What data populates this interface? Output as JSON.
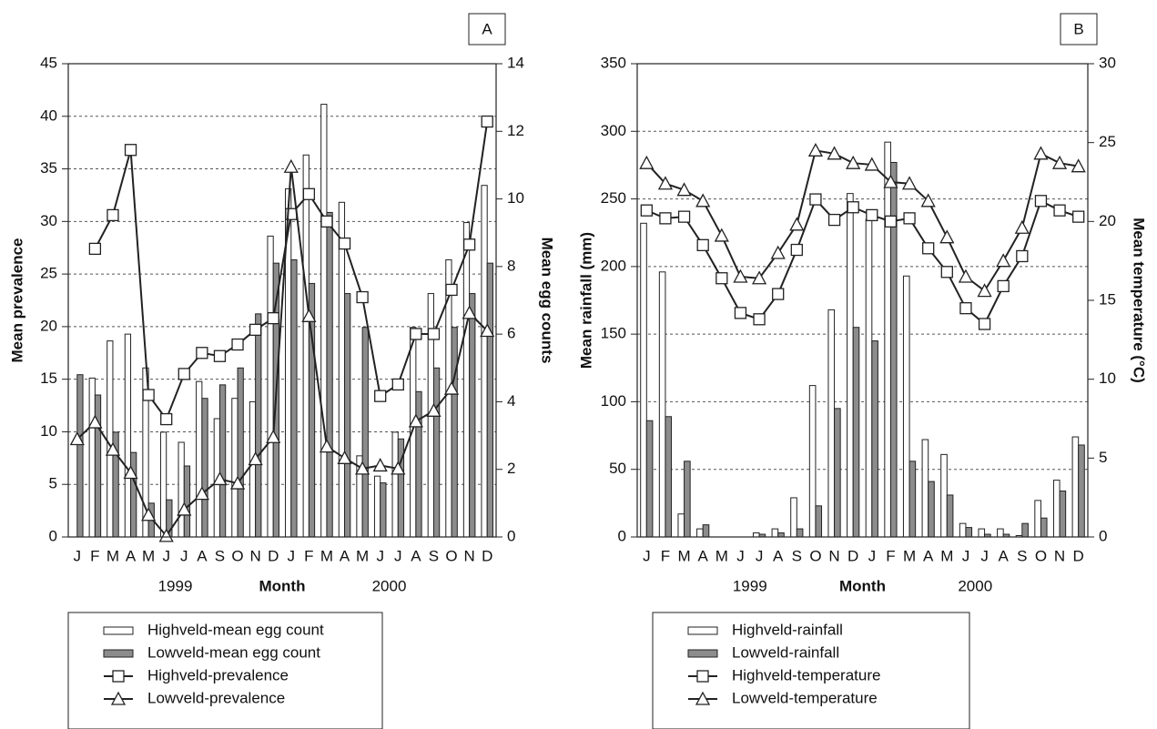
{
  "chart_data": [
    {
      "type": "combo",
      "panel_label": "A",
      "xlabel": "Month",
      "year_labels": [
        "1999",
        "2000"
      ],
      "ylabel": "Mean prevalence",
      "y2label": "Mean egg counts",
      "categories": [
        "J",
        "F",
        "M",
        "A",
        "M",
        "J",
        "J",
        "A",
        "S",
        "O",
        "N",
        "D",
        "J",
        "F",
        "M",
        "A",
        "M",
        "J",
        "J",
        "A",
        "S",
        "O",
        "N",
        "D"
      ],
      "ylim": [
        0,
        45
      ],
      "yticks": [
        0,
        5,
        10,
        15,
        20,
        25,
        30,
        35,
        40,
        45
      ],
      "y2lim": [
        0,
        14
      ],
      "y2ticks": [
        0,
        2,
        4,
        6,
        8,
        10,
        12,
        14
      ],
      "grid": true,
      "series": [
        {
          "name": "Highveld-mean egg count",
          "type": "bar",
          "axis": "y2",
          "color": "#ffffff",
          "values": [
            null,
            4.7,
            5.8,
            6.0,
            5.0,
            3.1,
            2.8,
            4.6,
            3.5,
            4.1,
            4.0,
            8.9,
            10.3,
            11.3,
            12.8,
            9.9,
            2.4,
            1.8,
            3.1,
            6.2,
            7.2,
            8.2,
            9.3,
            10.4
          ]
        },
        {
          "name": "Lowveld-mean egg count",
          "type": "bar",
          "axis": "y2",
          "color": "#8c8c8c",
          "values": [
            4.8,
            4.2,
            3.1,
            2.5,
            1.0,
            1.1,
            2.1,
            4.1,
            4.5,
            5.0,
            6.6,
            8.1,
            8.2,
            7.5,
            9.6,
            7.2,
            6.2,
            1.6,
            2.9,
            4.3,
            5.0,
            6.2,
            7.2,
            8.1
          ]
        },
        {
          "name": "Highveld-prevalence",
          "type": "line",
          "marker": "square",
          "color": "#222222",
          "values": [
            null,
            27.4,
            30.6,
            36.8,
            13.5,
            11.2,
            15.5,
            17.5,
            17.2,
            18.3,
            19.7,
            20.8,
            30.7,
            32.6,
            30.0,
            27.9,
            22.8,
            13.4,
            14.5,
            19.3,
            19.3,
            23.5,
            27.8,
            39.5
          ]
        },
        {
          "name": "Lowveld-prevalence",
          "type": "line",
          "marker": "triangle",
          "color": "#222222",
          "values": [
            9.3,
            10.9,
            8.3,
            6.1,
            2.1,
            0.1,
            2.6,
            4.1,
            5.5,
            5.1,
            7.4,
            9.5,
            35.2,
            21.0,
            8.6,
            7.5,
            6.5,
            6.8,
            6.5,
            11.0,
            12.0,
            14.1,
            21.3,
            19.6
          ]
        }
      ]
    },
    {
      "type": "combo",
      "panel_label": "B",
      "xlabel": "Month",
      "year_labels": [
        "1999",
        "2000"
      ],
      "ylabel": "Mean rainfall (mm)",
      "y2label": "Mean temperature (°C)",
      "categories": [
        "J",
        "F",
        "M",
        "A",
        "M",
        "J",
        "J",
        "A",
        "S",
        "O",
        "N",
        "D",
        "J",
        "F",
        "M",
        "A",
        "M",
        "J",
        "J",
        "A",
        "S",
        "O",
        "N",
        "D"
      ],
      "ylim": [
        0,
        350
      ],
      "yticks": [
        0,
        50,
        100,
        150,
        200,
        250,
        300,
        350
      ],
      "y2lim": [
        0,
        30
      ],
      "y2ticks": [
        0,
        5,
        10,
        15,
        20,
        25,
        30
      ],
      "grid": true,
      "series": [
        {
          "name": "Highveld-rainfall",
          "type": "bar",
          "color": "#ffffff",
          "values": [
            232,
            196,
            17,
            6,
            0,
            0,
            3,
            6,
            29,
            112,
            168,
            254,
            235,
            292,
            193,
            72,
            61,
            10,
            6,
            6,
            1,
            27,
            42,
            74
          ]
        },
        {
          "name": "Lowveld-rainfall",
          "type": "bar",
          "color": "#8c8c8c",
          "values": [
            86,
            89,
            56,
            9,
            0,
            0,
            2,
            3,
            6,
            23,
            95,
            155,
            145,
            277,
            56,
            41,
            31,
            7,
            2,
            2,
            10,
            14,
            34,
            68
          ]
        },
        {
          "name": "Highveld-temperature",
          "type": "line",
          "marker": "square",
          "axis": "y2",
          "color": "#222222",
          "values": [
            20.7,
            20.2,
            20.3,
            18.5,
            16.4,
            14.2,
            13.8,
            15.4,
            18.2,
            21.4,
            20.1,
            20.9,
            20.4,
            20.0,
            20.2,
            18.3,
            16.8,
            14.5,
            13.5,
            15.9,
            17.8,
            21.3,
            20.7,
            20.3
          ]
        },
        {
          "name": "Lowveld-temperature",
          "type": "line",
          "marker": "triangle",
          "axis": "y2",
          "color": "#222222",
          "values": [
            23.7,
            22.4,
            22.0,
            21.3,
            19.1,
            16.5,
            16.4,
            18.0,
            19.8,
            24.5,
            24.3,
            23.7,
            23.6,
            22.5,
            22.4,
            21.3,
            19.0,
            16.5,
            15.6,
            17.5,
            19.6,
            24.3,
            23.7,
            23.5
          ]
        }
      ]
    }
  ]
}
